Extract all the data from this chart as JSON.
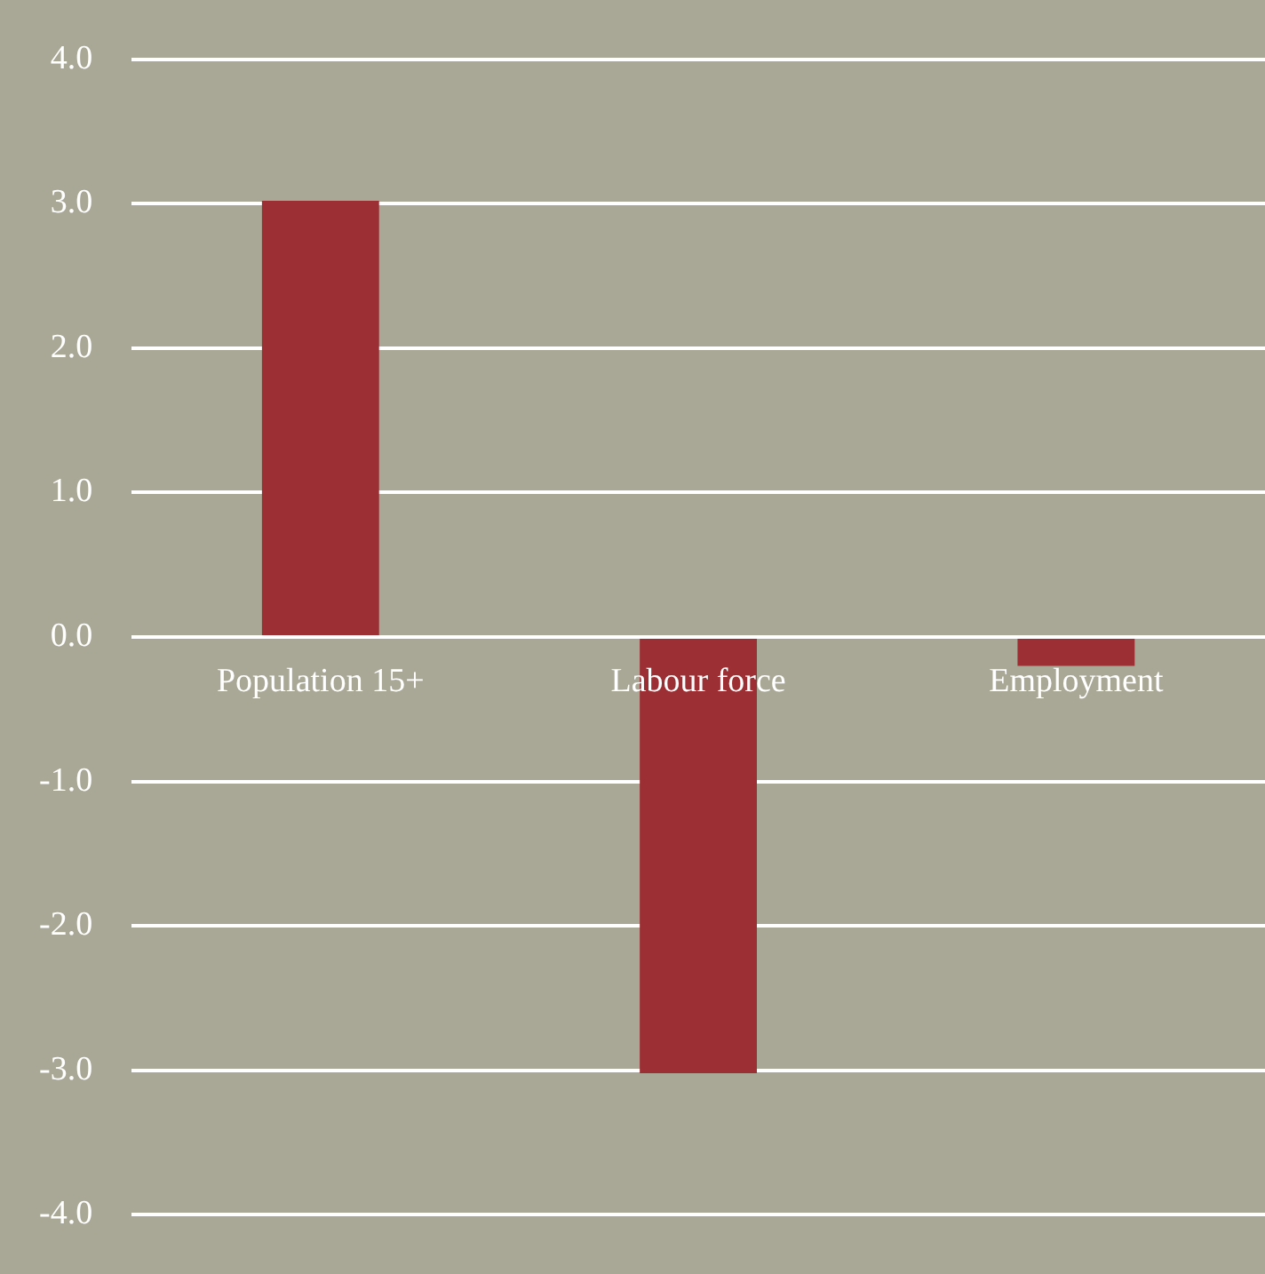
{
  "chart_data": {
    "type": "bar",
    "categories": [
      "Population 15+",
      "Labour force",
      "Employment"
    ],
    "values": [
      3.02,
      -3.02,
      -0.2
    ],
    "color": "#9c2f33",
    "ylim": [
      -4,
      4
    ],
    "yticks": [
      {
        "value": -4,
        "label": "-4.0"
      },
      {
        "value": -3,
        "label": "-3.0"
      },
      {
        "value": -2,
        "label": "-2.0"
      },
      {
        "value": -1,
        "label": "-1.0"
      },
      {
        "value": 0,
        "label": "0.0"
      },
      {
        "value": 1,
        "label": "1.0"
      },
      {
        "value": 2,
        "label": "2.0"
      },
      {
        "value": 3,
        "label": "3.0"
      },
      {
        "value": 4,
        "label": "4.0"
      }
    ],
    "grid": "y",
    "legend": false
  }
}
